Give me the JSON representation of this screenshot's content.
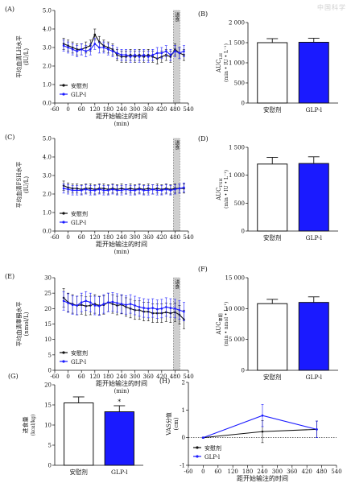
{
  "watermark": "中国科学",
  "legend": {
    "placebo": "安慰剂",
    "glp1": "GLP-l"
  },
  "chart_data": [
    {
      "id": "A",
      "panel_label": "(A)",
      "type": "line",
      "ylabel": [
        "平均血清LH水平",
        "(IU/L)"
      ],
      "xlabel": [
        "距开始输注的时间",
        "(min)"
      ],
      "xlim": [
        -60,
        540
      ],
      "ylim": [
        0,
        5
      ],
      "xticks": [
        -60,
        0,
        60,
        120,
        180,
        240,
        300,
        360,
        420,
        480,
        540
      ],
      "yticks": [
        0,
        1,
        2,
        3,
        4,
        5
      ],
      "ytick_labels": [
        "0.0",
        "1.0",
        "2.0",
        "3.0",
        "4.0",
        "5.0"
      ],
      "meal_time": 480,
      "meal_label": "进食",
      "error": 0.3,
      "x": [
        -20,
        0,
        20,
        40,
        60,
        80,
        100,
        120,
        140,
        160,
        180,
        200,
        220,
        240,
        260,
        280,
        300,
        320,
        340,
        360,
        380,
        400,
        420,
        440,
        460,
        480,
        500,
        520
      ],
      "series": [
        {
          "name": "安慰剂",
          "values": [
            3.2,
            3.1,
            3.0,
            2.9,
            2.9,
            3.0,
            3.1,
            3.7,
            3.3,
            3.1,
            3.0,
            2.9,
            2.6,
            2.5,
            2.5,
            2.6,
            2.5,
            2.6,
            2.5,
            2.6,
            2.5,
            2.4,
            2.5,
            2.6,
            2.5,
            2.9,
            2.7,
            2.6
          ]
        },
        {
          "name": "GLP-l",
          "values": [
            3.1,
            3.0,
            2.9,
            2.8,
            2.9,
            2.8,
            2.9,
            3.2,
            3.0,
            3.0,
            2.9,
            2.8,
            2.7,
            2.6,
            2.6,
            2.5,
            2.6,
            2.5,
            2.6,
            2.5,
            2.6,
            2.7,
            2.7,
            2.8,
            2.6,
            2.8,
            2.7,
            2.8
          ]
        }
      ]
    },
    {
      "id": "B",
      "panel_label": "(B)",
      "type": "bar",
      "ylabel": [
        "AUC_LH",
        "(min • IU • L⁻¹)"
      ],
      "categories": [
        "安慰剂",
        "GLP-l"
      ],
      "values": [
        1500,
        1510
      ],
      "errors": [
        100,
        100
      ],
      "ylim": [
        0,
        2000
      ],
      "yticks": [
        0,
        500,
        1000,
        1500,
        2000
      ],
      "ytick_labels": [
        "0",
        "500",
        "1 000",
        "1 500",
        "2 000"
      ]
    },
    {
      "id": "C",
      "panel_label": "(C)",
      "type": "line",
      "ylabel": [
        "平均血清FSH水平",
        "(IU/L)"
      ],
      "xlabel": [
        "距开始输注的时间",
        "(min)"
      ],
      "xlim": [
        -60,
        540
      ],
      "ylim": [
        0,
        5
      ],
      "xticks": [
        -60,
        0,
        60,
        120,
        180,
        240,
        300,
        360,
        420,
        480,
        540
      ],
      "yticks": [
        0,
        1,
        2,
        3,
        4,
        5
      ],
      "ytick_labels": [
        "0.0",
        "1.0",
        "2.0",
        "3.0",
        "4.0",
        "5.0"
      ],
      "meal_time": 480,
      "meal_label": "进食",
      "error": 0.25,
      "x": [
        -20,
        0,
        20,
        40,
        60,
        80,
        100,
        120,
        140,
        160,
        180,
        200,
        220,
        240,
        260,
        280,
        300,
        320,
        340,
        360,
        380,
        400,
        420,
        440,
        460,
        480,
        500,
        520
      ],
      "series": [
        {
          "name": "安慰剂",
          "values": [
            2.45,
            2.35,
            2.3,
            2.3,
            2.25,
            2.3,
            2.3,
            2.25,
            2.3,
            2.3,
            2.25,
            2.3,
            2.25,
            2.3,
            2.25,
            2.3,
            2.25,
            2.3,
            2.25,
            2.3,
            2.25,
            2.3,
            2.25,
            2.3,
            2.25,
            2.3,
            2.3,
            2.3
          ]
        },
        {
          "name": "GLP-l",
          "values": [
            2.3,
            2.25,
            2.2,
            2.2,
            2.2,
            2.25,
            2.2,
            2.2,
            2.25,
            2.2,
            2.2,
            2.25,
            2.2,
            2.2,
            2.25,
            2.2,
            2.2,
            2.25,
            2.2,
            2.2,
            2.25,
            2.2,
            2.2,
            2.25,
            2.2,
            2.25,
            2.3,
            2.35
          ]
        }
      ]
    },
    {
      "id": "D",
      "panel_label": "(D)",
      "type": "bar",
      "ylabel": [
        "AUC_FSH",
        "(min • IU • L⁻¹)"
      ],
      "categories": [
        "安慰剂",
        "GLP-l"
      ],
      "values": [
        1200,
        1210
      ],
      "errors": [
        120,
        120
      ],
      "ylim": [
        0,
        1500
      ],
      "yticks": [
        0,
        500,
        1000,
        1500
      ],
      "ytick_labels": [
        "0",
        "500",
        "1 000",
        "1 500"
      ]
    },
    {
      "id": "E",
      "panel_label": "(E)",
      "type": "line",
      "ylabel": [
        "平均血清睾酮水平",
        "(nmol/L)"
      ],
      "xlabel": [
        "距开始输注的时间",
        "(min)"
      ],
      "xlim": [
        -60,
        540
      ],
      "ylim": [
        0,
        30
      ],
      "xticks": [
        -60,
        0,
        60,
        120,
        180,
        240,
        300,
        360,
        420,
        480,
        540
      ],
      "yticks": [
        0,
        5,
        10,
        15,
        20,
        25,
        30
      ],
      "ytick_labels": [
        "0",
        "5",
        "10",
        "15",
        "20",
        "25",
        "30"
      ],
      "meal_time": 480,
      "meal_label": "进食",
      "error": 3,
      "x": [
        -20,
        0,
        20,
        40,
        60,
        80,
        100,
        120,
        140,
        160,
        180,
        200,
        220,
        240,
        260,
        280,
        300,
        320,
        340,
        360,
        380,
        400,
        420,
        440,
        460,
        480,
        500,
        520
      ],
      "series": [
        {
          "name": "安慰剂",
          "values": [
            23.5,
            22,
            21.5,
            21,
            21.2,
            20.8,
            21,
            21.5,
            21,
            21.2,
            22,
            21.5,
            21,
            21.3,
            20.5,
            20,
            19.5,
            19.5,
            19,
            19,
            18.5,
            18.5,
            18.5,
            18.8,
            18.5,
            18.8,
            18,
            16.5
          ]
        },
        {
          "name": "GLP-l",
          "values": [
            22.5,
            21.8,
            21.2,
            21,
            22,
            22.5,
            22,
            21,
            20.8,
            21.5,
            22,
            22.2,
            21.8,
            21.5,
            21.2,
            21.5,
            21,
            20.5,
            20.2,
            20,
            20.2,
            19.8,
            20,
            20.5,
            20.2,
            20,
            19.5,
            19
          ]
        }
      ]
    },
    {
      "id": "F",
      "panel_label": "(F)",
      "type": "bar",
      "ylabel": [
        "AUC_睾酮",
        "(min • nmol • L⁻¹)"
      ],
      "categories": [
        "安慰剂",
        "GLP-l"
      ],
      "values": [
        10800,
        11000
      ],
      "errors": [
        700,
        900
      ],
      "ylim": [
        0,
        15000
      ],
      "yticks": [
        0,
        5000,
        10000,
        15000
      ],
      "ytick_labels": [
        "0",
        "5 000",
        "10 000",
        "15 000"
      ]
    },
    {
      "id": "G",
      "panel_label": "(G)",
      "type": "bar",
      "ylabel": [
        "进食量",
        "(kcal/kg)"
      ],
      "categories": [
        "安慰剂",
        "GLP-l"
      ],
      "values": [
        15.5,
        13.3
      ],
      "errors": [
        1.5,
        1.5
      ],
      "significance": [
        "",
        "*"
      ],
      "ylim": [
        0,
        20
      ],
      "yticks": [
        0,
        5,
        10,
        15,
        20
      ],
      "ytick_labels": [
        "0",
        "5",
        "10",
        "15",
        "20"
      ]
    },
    {
      "id": "H",
      "panel_label": "(H)",
      "type": "line",
      "ylabel": [
        "VAS分值",
        "(cm)"
      ],
      "xlabel": [
        "距开始输注的时间",
        "(min)"
      ],
      "xlim": [
        -60,
        540
      ],
      "ylim": [
        -1,
        2
      ],
      "xticks": [
        -60,
        0,
        60,
        120,
        180,
        240,
        300,
        360,
        420,
        480,
        540
      ],
      "yticks": [
        -1,
        0,
        1,
        2
      ],
      "ytick_labels": [
        "-1",
        "0",
        "1",
        "2"
      ],
      "x": [
        0,
        240,
        460
      ],
      "errors": [
        0.02,
        0.4,
        0.3
      ],
      "series": [
        {
          "name": "安慰剂",
          "values": [
            0.0,
            0.22,
            0.3
          ]
        },
        {
          "name": "GLP-l",
          "values": [
            0.0,
            0.8,
            0.3
          ]
        }
      ]
    }
  ]
}
